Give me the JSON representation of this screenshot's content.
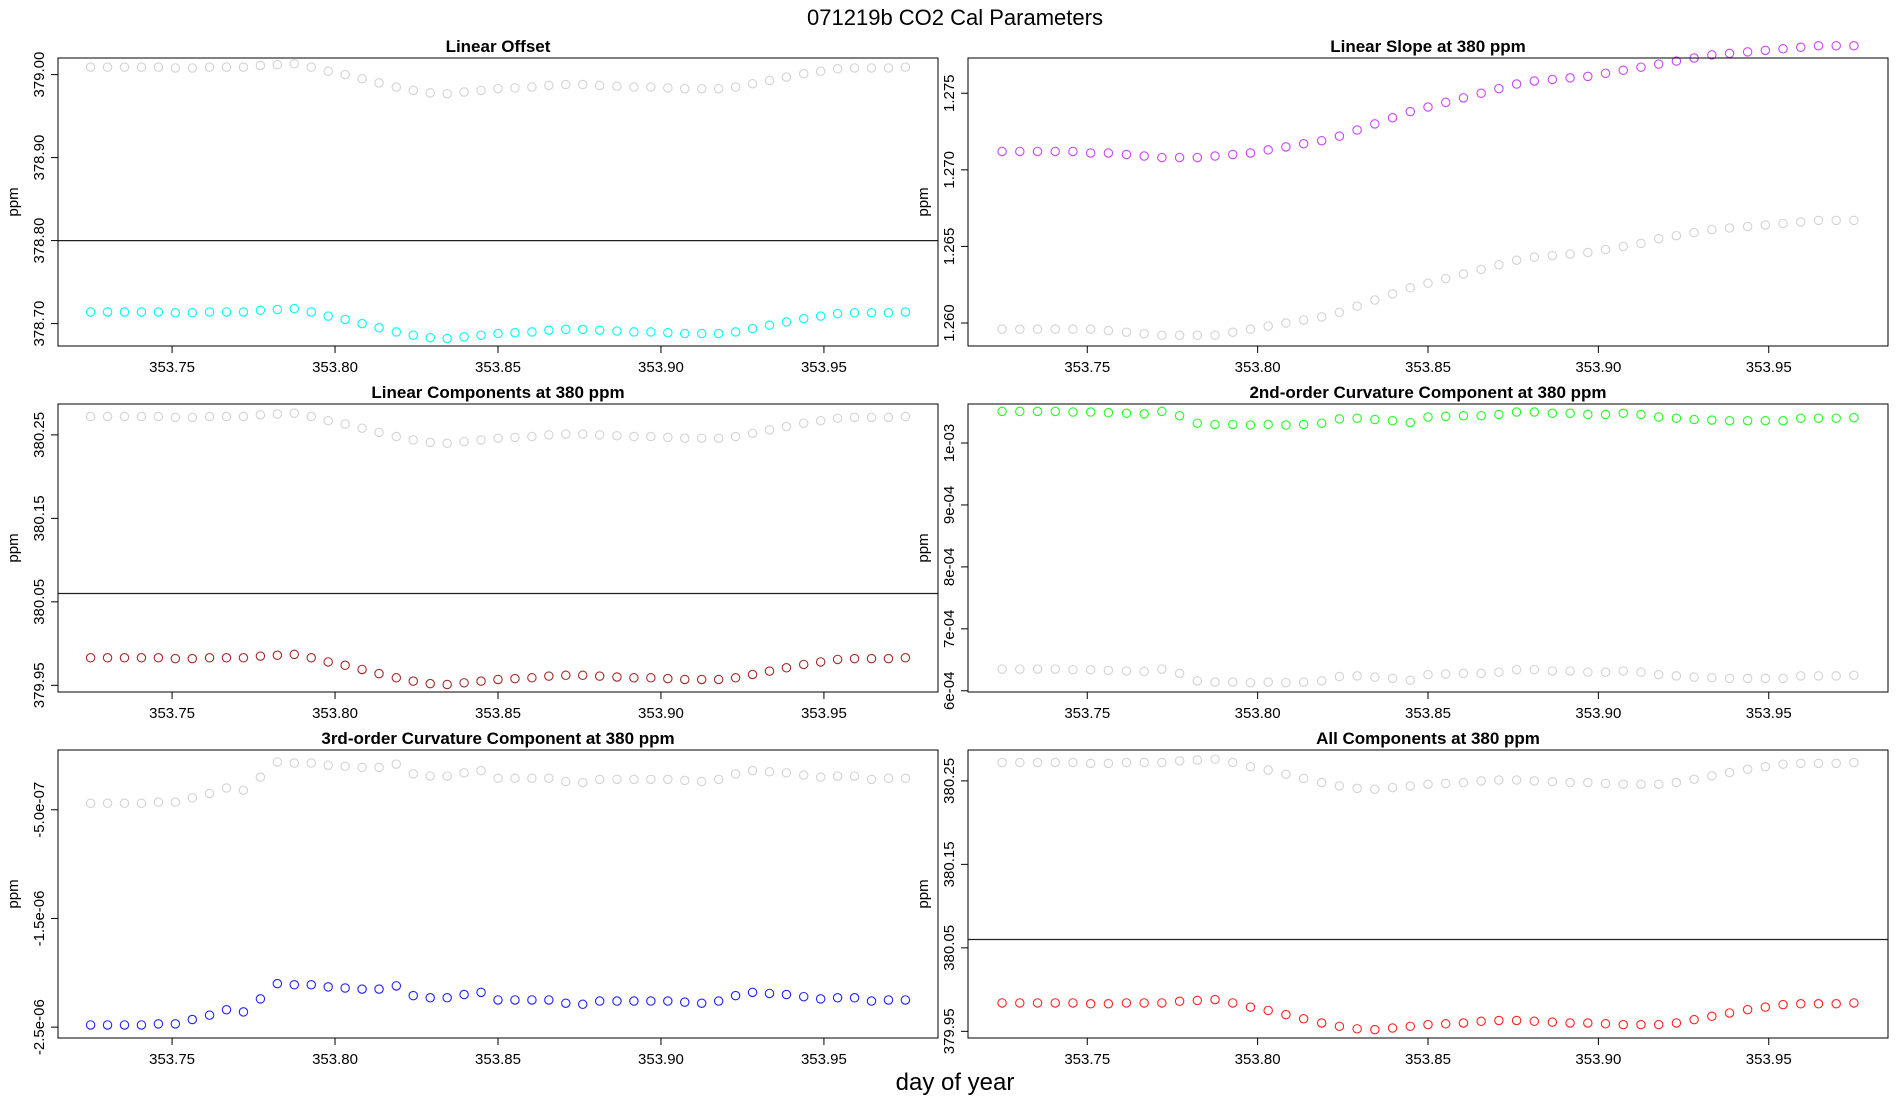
{
  "title": "071219b   CO2 Cal Parameters",
  "xlabel": "day of year",
  "colors": {
    "gray": "#d3d3d3",
    "axis": "#000000",
    "refline": "#555555"
  },
  "chart_data": [
    {
      "type": "scatter",
      "title": "Linear Offset",
      "ylabel": "ppm",
      "xlim": [
        353.715,
        353.985
      ],
      "ylim": [
        378.673,
        379.02
      ],
      "xticks": [
        353.75,
        353.8,
        353.85,
        353.9,
        353.95
      ],
      "xtick_labels": [
        "353.75",
        "353.80",
        "353.85",
        "353.90",
        "353.95"
      ],
      "yticks": [
        378.7,
        378.8,
        378.9,
        379.0
      ],
      "ytick_labels": [
        "378.70",
        "378.80",
        "378.90",
        "379.00"
      ],
      "hline": 378.8,
      "series": [
        {
          "name": "gray",
          "color": "#d3d3d3",
          "y": [
            379.009,
            379.009,
            379.009,
            379.009,
            379.009,
            379.008,
            379.008,
            379.009,
            379.009,
            379.009,
            379.011,
            379.012,
            379.013,
            379.009,
            379.004,
            379.0,
            378.995,
            378.99,
            378.985,
            378.981,
            378.978,
            378.977,
            378.979,
            378.981,
            378.983,
            378.984,
            378.985,
            378.987,
            378.988,
            378.988,
            378.987,
            378.986,
            378.985,
            378.985,
            378.984,
            378.983,
            378.983,
            378.983,
            378.985,
            378.989,
            378.993,
            378.997,
            379.001,
            379.004,
            379.007,
            379.008,
            379.008,
            379.008,
            379.009
          ]
        },
        {
          "name": "current",
          "color": "#00ffff",
          "y": [
            378.714,
            378.714,
            378.714,
            378.714,
            378.714,
            378.713,
            378.713,
            378.714,
            378.714,
            378.714,
            378.716,
            378.717,
            378.718,
            378.714,
            378.709,
            378.705,
            378.7,
            378.695,
            378.69,
            378.686,
            378.683,
            378.682,
            378.684,
            378.686,
            378.688,
            378.689,
            378.69,
            378.692,
            378.693,
            378.693,
            378.692,
            378.691,
            378.69,
            378.69,
            378.689,
            378.688,
            378.688,
            378.688,
            378.69,
            378.694,
            378.698,
            378.702,
            378.706,
            378.709,
            378.712,
            378.713,
            378.713,
            378.713,
            378.714
          ]
        }
      ]
    },
    {
      "type": "scatter",
      "title": "Linear Slope at 380 ppm",
      "ylabel": "ppm",
      "xlim": [
        353.715,
        353.985
      ],
      "ylim": [
        1.2585,
        1.2773
      ],
      "xticks": [
        353.75,
        353.8,
        353.85,
        353.9,
        353.95
      ],
      "xtick_labels": [
        "353.75",
        "353.80",
        "353.85",
        "353.90",
        "353.95"
      ],
      "yticks": [
        1.26,
        1.265,
        1.27,
        1.275
      ],
      "ytick_labels": [
        "1.260",
        "1.265",
        "1.270",
        "1.275"
      ],
      "series": [
        {
          "name": "gray",
          "color": "#d3d3d3",
          "y": [
            1.2596,
            1.2596,
            1.2596,
            1.2596,
            1.2596,
            1.2596,
            1.2595,
            1.2594,
            1.2593,
            1.2592,
            1.2592,
            1.2592,
            1.2592,
            1.2594,
            1.2596,
            1.2598,
            1.26,
            1.2602,
            1.2604,
            1.2607,
            1.2611,
            1.2615,
            1.2619,
            1.2623,
            1.2626,
            1.2629,
            1.2632,
            1.2635,
            1.2638,
            1.2641,
            1.2643,
            1.2644,
            1.2645,
            1.2646,
            1.2648,
            1.265,
            1.2652,
            1.2655,
            1.2657,
            1.2659,
            1.2661,
            1.2662,
            1.2663,
            1.2664,
            1.2665,
            1.2666,
            1.2667,
            1.2667,
            1.2667
          ]
        },
        {
          "name": "current",
          "color": "#cc44ff",
          "y": [
            1.2712,
            1.2712,
            1.2712,
            1.2712,
            1.2712,
            1.2711,
            1.2711,
            1.271,
            1.2709,
            1.2708,
            1.2708,
            1.2708,
            1.2709,
            1.271,
            1.2711,
            1.2713,
            1.2715,
            1.2717,
            1.2719,
            1.2722,
            1.2726,
            1.273,
            1.2734,
            1.2738,
            1.2741,
            1.2744,
            1.2747,
            1.275,
            1.2753,
            1.2756,
            1.2758,
            1.2759,
            1.276,
            1.2761,
            1.2763,
            1.2765,
            1.2767,
            1.2769,
            1.2771,
            1.2773,
            1.2775,
            1.2776,
            1.2777,
            1.2778,
            1.2779,
            1.278,
            1.2781,
            1.2781,
            1.2781
          ]
        }
      ]
    },
    {
      "type": "scatter",
      "title": "Linear Components at 380 ppm",
      "ylabel": "ppm",
      "xlim": [
        353.715,
        353.985
      ],
      "ylim": [
        379.942,
        380.287
      ],
      "xticks": [
        353.75,
        353.8,
        353.85,
        353.9,
        353.95
      ],
      "xtick_labels": [
        "353.75",
        "353.80",
        "353.85",
        "353.90",
        "353.95"
      ],
      "yticks": [
        379.95,
        380.05,
        380.15,
        380.25
      ],
      "ytick_labels": [
        "379.95",
        "380.05",
        "380.15",
        "380.25"
      ],
      "hline": 380.06,
      "series": [
        {
          "name": "gray",
          "color": "#d3d3d3",
          "y": [
            380.272,
            380.272,
            380.272,
            380.272,
            380.272,
            380.271,
            380.271,
            380.272,
            380.272,
            380.272,
            380.274,
            380.275,
            380.276,
            380.272,
            380.267,
            380.263,
            380.258,
            380.253,
            380.248,
            380.244,
            380.241,
            380.24,
            380.242,
            380.244,
            380.246,
            380.247,
            380.248,
            380.25,
            380.251,
            380.251,
            380.25,
            380.249,
            380.248,
            380.248,
            380.247,
            380.246,
            380.246,
            380.246,
            380.248,
            380.252,
            380.256,
            380.26,
            380.264,
            380.267,
            380.27,
            380.271,
            380.271,
            380.271,
            380.272
          ]
        },
        {
          "name": "current",
          "color": "#a52a2a",
          "y": [
            379.983,
            379.983,
            379.983,
            379.983,
            379.983,
            379.982,
            379.982,
            379.983,
            379.983,
            379.983,
            379.985,
            379.986,
            379.987,
            379.983,
            379.978,
            379.974,
            379.969,
            379.964,
            379.959,
            379.955,
            379.952,
            379.951,
            379.953,
            379.955,
            379.957,
            379.958,
            379.959,
            379.961,
            379.962,
            379.962,
            379.961,
            379.96,
            379.959,
            379.959,
            379.958,
            379.957,
            379.957,
            379.957,
            379.959,
            379.963,
            379.967,
            379.971,
            379.975,
            379.978,
            379.981,
            379.982,
            379.982,
            379.982,
            379.983
          ]
        }
      ]
    },
    {
      "type": "scatter",
      "title": "2nd-order Curvature Component at 380 ppm",
      "ylabel": "ppm",
      "xlim": [
        353.715,
        353.985
      ],
      "ylim": [
        0.000598,
        0.001063
      ],
      "xticks": [
        353.75,
        353.8,
        353.85,
        353.9,
        353.95
      ],
      "xtick_labels": [
        "353.75",
        "353.80",
        "353.85",
        "353.90",
        "353.95"
      ],
      "yticks": [
        0.0006,
        0.0007,
        0.0008,
        0.0009,
        0.001
      ],
      "ytick_labels": [
        "6e-04",
        "7e-04",
        "8e-04",
        "9e-04",
        "1e-03"
      ],
      "series": [
        {
          "name": "gray",
          "color": "#d3d3d3",
          "y": [
            0.000635,
            0.000635,
            0.000635,
            0.000635,
            0.000634,
            0.000634,
            0.000633,
            0.000632,
            0.000631,
            0.000635,
            0.000628,
            0.000616,
            0.000614,
            0.000614,
            0.000613,
            0.000614,
            0.000613,
            0.000614,
            0.000616,
            0.000623,
            0.000624,
            0.000622,
            0.00062,
            0.000617,
            0.000626,
            0.000627,
            0.000628,
            0.000628,
            0.00063,
            0.000634,
            0.000634,
            0.000632,
            0.000632,
            0.00063,
            0.00063,
            0.000632,
            0.00063,
            0.000626,
            0.000624,
            0.000622,
            0.000621,
            0.00062,
            0.00062,
            0.00062,
            0.00062,
            0.000624,
            0.000624,
            0.000624,
            0.000625
          ]
        },
        {
          "name": "current",
          "color": "#22ff22",
          "y": [
            0.001051,
            0.001051,
            0.001051,
            0.001051,
            0.00105,
            0.00105,
            0.001049,
            0.001048,
            0.001047,
            0.001051,
            0.001044,
            0.001032,
            0.00103,
            0.00103,
            0.001029,
            0.00103,
            0.001029,
            0.00103,
            0.001032,
            0.001039,
            0.00104,
            0.001038,
            0.001036,
            0.001033,
            0.001042,
            0.001043,
            0.001044,
            0.001044,
            0.001046,
            0.00105,
            0.00105,
            0.001048,
            0.001048,
            0.001046,
            0.001046,
            0.001048,
            0.001046,
            0.001042,
            0.00104,
            0.001038,
            0.001037,
            0.001036,
            0.001036,
            0.001036,
            0.001036,
            0.00104,
            0.00104,
            0.00104,
            0.001041
          ]
        }
      ]
    },
    {
      "type": "scatter",
      "title": "3rd-order Curvature Component at 380 ppm",
      "ylabel": "ppm",
      "xlim": [
        353.715,
        353.985
      ],
      "ylim": [
        -2.6e-06,
        5e-08
      ],
      "xticks": [
        353.75,
        353.8,
        353.85,
        353.9,
        353.95
      ],
      "xtick_labels": [
        "353.75",
        "353.80",
        "353.85",
        "353.90",
        "353.95"
      ],
      "yticks": [
        -2.5e-06,
        -1.5e-06,
        -5e-07
      ],
      "ytick_labels": [
        "-2.5e-06",
        "-1.5e-06",
        "-5.0e-07"
      ],
      "series": [
        {
          "name": "gray",
          "color": "#d3d3d3",
          "y": [
            -4.4e-07,
            -4.4e-07,
            -4.4e-07,
            -4.4e-07,
            -4.3e-07,
            -4.3e-07,
            -3.9e-07,
            -3.5e-07,
            -3e-07,
            -3.2e-07,
            -2e-07,
            -6e-08,
            -7e-08,
            -7e-08,
            -9e-08,
            -1e-07,
            -1.1e-07,
            -1.1e-07,
            -8e-08,
            -1.7e-07,
            -1.9e-07,
            -1.9e-07,
            -1.6e-07,
            -1.4e-07,
            -2.1e-07,
            -2.1e-07,
            -2.1e-07,
            -2.1e-07,
            -2.4e-07,
            -2.5e-07,
            -2.2e-07,
            -2.2e-07,
            -2.2e-07,
            -2.2e-07,
            -2.2e-07,
            -2.3e-07,
            -2.4e-07,
            -2.2e-07,
            -1.7e-07,
            -1.4e-07,
            -1.5e-07,
            -1.6e-07,
            -1.8e-07,
            -2e-07,
            -1.9e-07,
            -1.9e-07,
            -2.2e-07,
            -2.1e-07,
            -2.1e-07
          ]
        },
        {
          "name": "current",
          "color": "#2222ff",
          "y": [
            -2.48e-06,
            -2.48e-06,
            -2.48e-06,
            -2.48e-06,
            -2.47e-06,
            -2.47e-06,
            -2.43e-06,
            -2.39e-06,
            -2.34e-06,
            -2.36e-06,
            -2.24e-06,
            -2.1e-06,
            -2.11e-06,
            -2.11e-06,
            -2.13e-06,
            -2.14e-06,
            -2.15e-06,
            -2.15e-06,
            -2.12e-06,
            -2.21e-06,
            -2.23e-06,
            -2.23e-06,
            -2.2e-06,
            -2.18e-06,
            -2.25e-06,
            -2.25e-06,
            -2.25e-06,
            -2.25e-06,
            -2.28e-06,
            -2.29e-06,
            -2.26e-06,
            -2.26e-06,
            -2.26e-06,
            -2.26e-06,
            -2.26e-06,
            -2.27e-06,
            -2.28e-06,
            -2.26e-06,
            -2.21e-06,
            -2.18e-06,
            -2.19e-06,
            -2.2e-06,
            -2.22e-06,
            -2.24e-06,
            -2.23e-06,
            -2.23e-06,
            -2.26e-06,
            -2.25e-06,
            -2.25e-06
          ]
        }
      ]
    },
    {
      "type": "scatter",
      "title": "All Components at 380 ppm",
      "ylabel": "ppm",
      "xlim": [
        353.715,
        353.985
      ],
      "ylim": [
        379.942,
        380.287
      ],
      "xticks": [
        353.75,
        353.8,
        353.85,
        353.9,
        353.95
      ],
      "xtick_labels": [
        "353.75",
        "353.80",
        "353.85",
        "353.90",
        "353.95"
      ],
      "yticks": [
        379.95,
        380.05,
        380.15,
        380.25
      ],
      "ytick_labels": [
        "379.95",
        "380.05",
        "380.15",
        "380.25"
      ],
      "hline": 380.06,
      "series": [
        {
          "name": "gray",
          "color": "#d3d3d3",
          "y": [
            380.272,
            380.272,
            380.272,
            380.272,
            380.272,
            380.271,
            380.271,
            380.272,
            380.272,
            380.272,
            380.274,
            380.275,
            380.276,
            380.272,
            380.267,
            380.263,
            380.258,
            380.253,
            380.248,
            380.244,
            380.241,
            380.24,
            380.242,
            380.244,
            380.246,
            380.247,
            380.248,
            380.25,
            380.251,
            380.251,
            380.25,
            380.249,
            380.248,
            380.248,
            380.247,
            380.246,
            380.246,
            380.246,
            380.248,
            380.252,
            380.256,
            380.26,
            380.264,
            380.267,
            380.27,
            380.271,
            380.271,
            380.271,
            380.272
          ]
        },
        {
          "name": "current",
          "color": "#ff2222",
          "y": [
            379.984,
            379.984,
            379.984,
            379.984,
            379.984,
            379.983,
            379.983,
            379.984,
            379.984,
            379.984,
            379.986,
            379.987,
            379.988,
            379.984,
            379.979,
            379.975,
            379.97,
            379.965,
            379.96,
            379.956,
            379.953,
            379.952,
            379.954,
            379.956,
            379.958,
            379.959,
            379.96,
            379.962,
            379.963,
            379.963,
            379.962,
            379.961,
            379.96,
            379.96,
            379.959,
            379.958,
            379.958,
            379.958,
            379.96,
            379.964,
            379.968,
            379.972,
            379.976,
            379.979,
            379.982,
            379.983,
            379.983,
            379.983,
            379.984
          ]
        }
      ]
    }
  ],
  "x_values": [
    353.725,
    353.7302,
    353.7354,
    353.7406,
    353.7458,
    353.751,
    353.7562,
    353.7615,
    353.7667,
    353.7719,
    353.7771,
    353.7823,
    353.7875,
    353.7927,
    353.7979,
    353.8031,
    353.8083,
    353.8135,
    353.8188,
    353.824,
    353.8292,
    353.8344,
    353.8396,
    353.8448,
    353.85,
    353.8552,
    353.8604,
    353.8656,
    353.8708,
    353.876,
    353.8812,
    353.8865,
    353.8917,
    353.8969,
    353.9021,
    353.9073,
    353.9125,
    353.9177,
    353.9229,
    353.9281,
    353.9333,
    353.9385,
    353.9438,
    353.949,
    353.9542,
    353.9594,
    353.9646,
    353.9698,
    353.975
  ]
}
